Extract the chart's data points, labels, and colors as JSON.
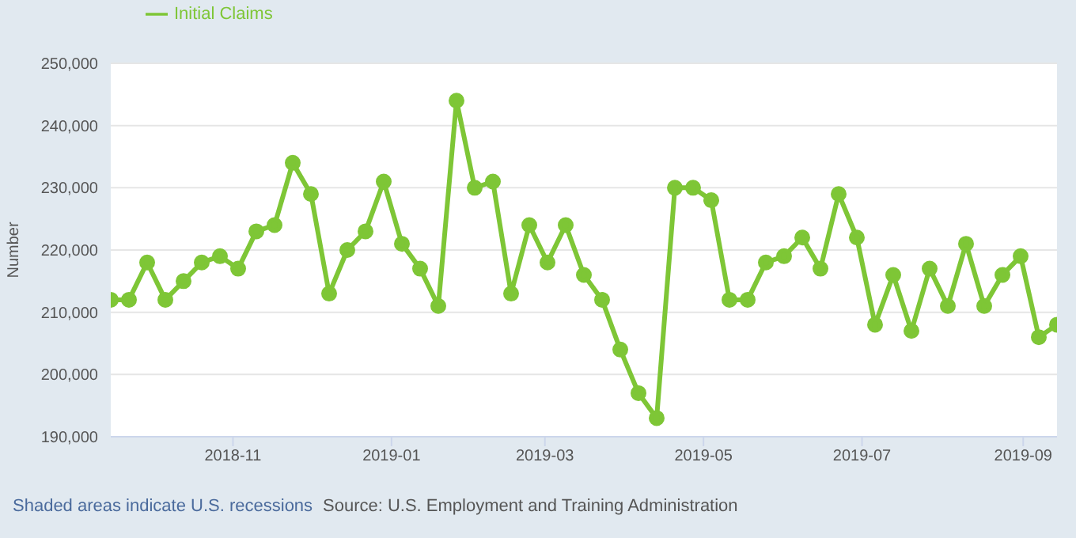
{
  "chart_data": {
    "type": "line",
    "ylabel": "Number",
    "x": [
      "2018-09-15",
      "2018-09-22",
      "2018-09-29",
      "2018-10-06",
      "2018-10-13",
      "2018-10-20",
      "2018-10-27",
      "2018-11-03",
      "2018-11-10",
      "2018-11-17",
      "2018-11-24",
      "2018-12-01",
      "2018-12-08",
      "2018-12-15",
      "2018-12-22",
      "2018-12-29",
      "2019-01-05",
      "2019-01-12",
      "2019-01-19",
      "2019-01-26",
      "2019-02-02",
      "2019-02-09",
      "2019-02-16",
      "2019-02-23",
      "2019-03-02",
      "2019-03-09",
      "2019-03-16",
      "2019-03-23",
      "2019-03-30",
      "2019-04-06",
      "2019-04-13",
      "2019-04-20",
      "2019-04-27",
      "2019-05-04",
      "2019-05-11",
      "2019-05-18",
      "2019-05-25",
      "2019-06-01",
      "2019-06-08",
      "2019-06-15",
      "2019-06-22",
      "2019-06-29",
      "2019-07-06",
      "2019-07-13",
      "2019-07-20",
      "2019-07-27",
      "2019-08-03",
      "2019-08-10",
      "2019-08-17",
      "2019-08-24",
      "2019-08-31",
      "2019-09-07",
      "2019-09-14"
    ],
    "series": [
      {
        "name": "Initial Claims",
        "color": "#7ec636",
        "values": [
          212000,
          212000,
          218000,
          212000,
          215000,
          218000,
          219000,
          217000,
          223000,
          224000,
          234000,
          229000,
          213000,
          220000,
          223000,
          231000,
          221000,
          217000,
          211000,
          244000,
          230000,
          231000,
          213000,
          224000,
          218000,
          224000,
          216000,
          212000,
          204000,
          197000,
          193000,
          230000,
          230000,
          228000,
          212000,
          212000,
          218000,
          219000,
          222000,
          217000,
          229000,
          222000,
          208000,
          216000,
          207000,
          217000,
          211000,
          221000,
          211000,
          216000,
          219000,
          206000,
          208000
        ]
      }
    ],
    "xlim": [
      "2018-09-15",
      "2019-09-14"
    ],
    "xticks": [
      {
        "value": "2018-11-01",
        "label": "2018-11"
      },
      {
        "value": "2019-01-01",
        "label": "2019-01"
      },
      {
        "value": "2019-03-01",
        "label": "2019-03"
      },
      {
        "value": "2019-05-01",
        "label": "2019-05"
      },
      {
        "value": "2019-07-01",
        "label": "2019-07"
      },
      {
        "value": "2019-09-01",
        "label": "2019-09"
      }
    ],
    "ylim": [
      190000,
      250000
    ],
    "yticks": [
      {
        "value": 190000,
        "label": "190,000"
      },
      {
        "value": 200000,
        "label": "200,000"
      },
      {
        "value": 210000,
        "label": "210,000"
      },
      {
        "value": 220000,
        "label": "220,000"
      },
      {
        "value": 230000,
        "label": "230,000"
      },
      {
        "value": 240000,
        "label": "240,000"
      },
      {
        "value": 250000,
        "label": "250,000"
      }
    ],
    "grid": "y",
    "legend": "top left",
    "marker": "circle",
    "line_style": "solid",
    "annotations": [
      "Shaded areas indicate U.S. recessions",
      "Source: U.S. Employment and Training Administration"
    ]
  }
}
